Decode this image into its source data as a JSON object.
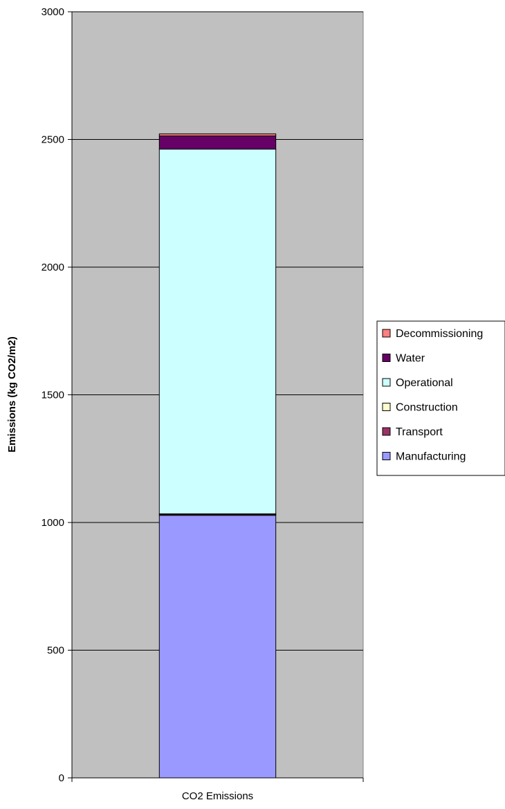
{
  "chart_data": {
    "type": "bar",
    "stacked": true,
    "categories": [
      "CO2 Emissions"
    ],
    "series": [
      {
        "name": "Manufacturing",
        "values": [
          1028
        ],
        "color": "#9999ff"
      },
      {
        "name": "Transport",
        "values": [
          4
        ],
        "color": "#993366"
      },
      {
        "name": "Construction",
        "values": [
          2
        ],
        "color": "#ffffcc"
      },
      {
        "name": "Operational",
        "values": [
          1428
        ],
        "color": "#ccffff"
      },
      {
        "name": "Water",
        "values": [
          52
        ],
        "color": "#660066"
      },
      {
        "name": "Decommissioning",
        "values": [
          8
        ],
        "color": "#ff8080"
      }
    ],
    "title": "",
    "xlabel": "",
    "ylabel": "Emissions (kg CO2/m2)",
    "ylim": [
      0,
      3000
    ],
    "yticks": [
      0,
      500,
      1000,
      1500,
      2000,
      2500,
      3000
    ],
    "grid": true,
    "plot_background": "#c0c0c0",
    "legend_position": "right",
    "legend_order": [
      "Decommissioning",
      "Water",
      "Operational",
      "Construction",
      "Transport",
      "Manufacturing"
    ]
  }
}
